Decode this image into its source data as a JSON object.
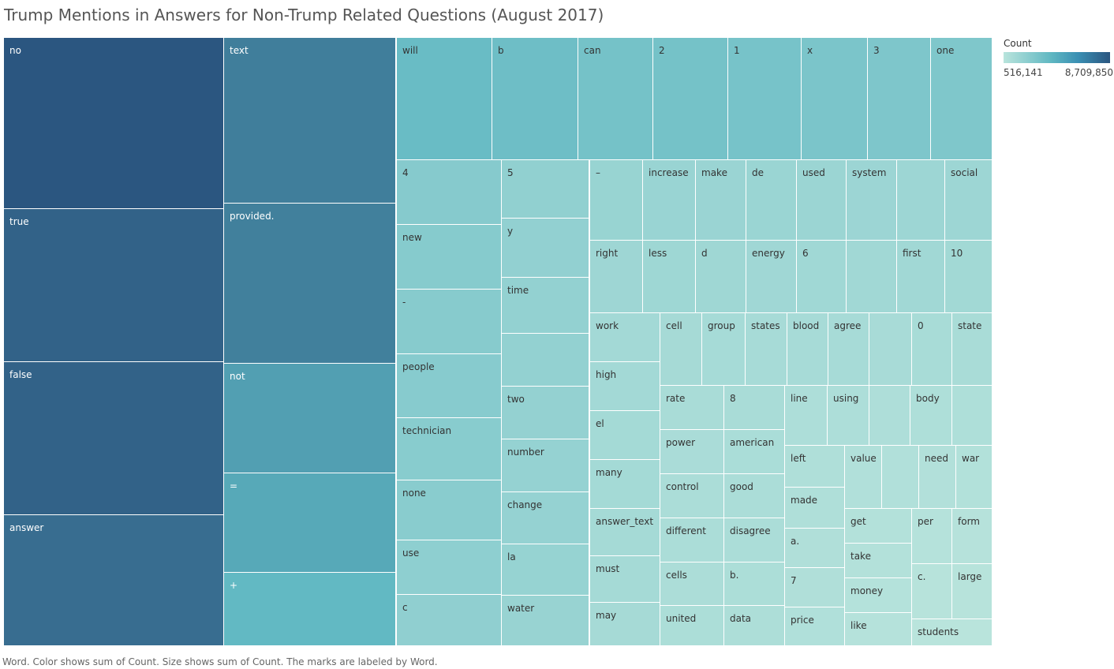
{
  "title": "Trump Mentions in Answers for Non-Trump Related Questions (August 2017)",
  "caption": "Word.  Color shows sum of Count.  Size shows sum of Count.  The marks are labeled by Word.",
  "legend": {
    "title": "Count",
    "min_label": "516,141",
    "max_label": "8,709,850"
  },
  "chart_data": {
    "type": "treemap",
    "title": "Trump Mentions in Answers for Non-Trump Related Questions (August 2017)",
    "size_measure": "Count",
    "color_measure": "Count",
    "color_range": [
      516141,
      8709850
    ],
    "colors": {
      "low": "#b9e4dc",
      "mid": "#5fb7c2",
      "high": "#2b5680"
    },
    "items": [
      {
        "word": "no",
        "value": 8709850
      },
      {
        "word": "true",
        "value": 7800000
      },
      {
        "word": "false",
        "value": 7800000
      },
      {
        "word": "answer",
        "value": 7000000
      },
      {
        "word": "text",
        "value": 5900000
      },
      {
        "word": "provided.",
        "value": 5800000
      },
      {
        "word": "not",
        "value": 4000000
      },
      {
        "word": "=",
        "value": 3500000
      },
      {
        "word": "+",
        "value": 2700000
      },
      {
        "word": "will",
        "value": 2400000
      },
      {
        "word": "b",
        "value": 2200000
      },
      {
        "word": "can",
        "value": 1900000
      },
      {
        "word": "2",
        "value": 1900000
      },
      {
        "word": "1",
        "value": 1850000
      },
      {
        "word": "x",
        "value": 1700000
      },
      {
        "word": "3",
        "value": 1600000
      },
      {
        "word": "one",
        "value": 1550000
      },
      {
        "word": "4",
        "value": 1350000
      },
      {
        "word": "new",
        "value": 1330000
      },
      {
        "word": "-",
        "value": 1320000
      },
      {
        "word": "people",
        "value": 1300000
      },
      {
        "word": "technician",
        "value": 1280000
      },
      {
        "word": "none",
        "value": 1250000
      },
      {
        "word": "use",
        "value": 1120000
      },
      {
        "word": "c",
        "value": 1080000
      },
      {
        "word": "5",
        "value": 1050000
      },
      {
        "word": "y",
        "value": 1030000
      },
      {
        "word": "time",
        "value": 1010000
      },
      {
        "word": "",
        "value": 1000000
      },
      {
        "word": "two",
        "value": 980000
      },
      {
        "word": "number",
        "value": 960000
      },
      {
        "word": "change",
        "value": 950000
      },
      {
        "word": "la",
        "value": 930000
      },
      {
        "word": "water",
        "value": 900000
      },
      {
        "word": "–",
        "value": 890000
      },
      {
        "word": "increase",
        "value": 880000
      },
      {
        "word": "make",
        "value": 860000
      },
      {
        "word": "de",
        "value": 850000
      },
      {
        "word": "used",
        "value": 830000
      },
      {
        "word": "system",
        "value": 820000
      },
      {
        "word": "",
        "value": 800000
      },
      {
        "word": "social",
        "value": 790000
      },
      {
        "word": "right",
        "value": 780000
      },
      {
        "word": "less",
        "value": 770000
      },
      {
        "word": "d",
        "value": 760000
      },
      {
        "word": "energy",
        "value": 750000
      },
      {
        "word": "6",
        "value": 740000
      },
      {
        "word": "",
        "value": 730000
      },
      {
        "word": "first",
        "value": 720000
      },
      {
        "word": "10",
        "value": 710000
      },
      {
        "word": "work",
        "value": 700000
      },
      {
        "word": "high",
        "value": 690000
      },
      {
        "word": "el",
        "value": 680000
      },
      {
        "word": "many",
        "value": 675000
      },
      {
        "word": "answer_text",
        "value": 670000
      },
      {
        "word": "must",
        "value": 665000
      },
      {
        "word": "may",
        "value": 660000
      },
      {
        "word": "cell",
        "value": 655000
      },
      {
        "word": "group",
        "value": 650000
      },
      {
        "word": "states",
        "value": 645000
      },
      {
        "word": "blood",
        "value": 640000
      },
      {
        "word": "agree",
        "value": 635000
      },
      {
        "word": "",
        "value": 630000
      },
      {
        "word": "0",
        "value": 625000
      },
      {
        "word": "state",
        "value": 620000
      },
      {
        "word": "rate",
        "value": 615000
      },
      {
        "word": "8",
        "value": 612000
      },
      {
        "word": "power",
        "value": 608000
      },
      {
        "word": "american",
        "value": 604000
      },
      {
        "word": "control",
        "value": 600000
      },
      {
        "word": "good",
        "value": 597000
      },
      {
        "word": "different",
        "value": 594000
      },
      {
        "word": "disagree",
        "value": 591000
      },
      {
        "word": "cells",
        "value": 588000
      },
      {
        "word": "b.",
        "value": 585000
      },
      {
        "word": "united",
        "value": 582000
      },
      {
        "word": "data",
        "value": 579000
      },
      {
        "word": "line",
        "value": 576000
      },
      {
        "word": "using",
        "value": 573000
      },
      {
        "word": "",
        "value": 570000
      },
      {
        "word": "body",
        "value": 567000
      },
      {
        "word": "",
        "value": 564000
      },
      {
        "word": "left",
        "value": 561000
      },
      {
        "word": "made",
        "value": 558000
      },
      {
        "word": "a.",
        "value": 555000
      },
      {
        "word": "7",
        "value": 552000
      },
      {
        "word": "price",
        "value": 549000
      },
      {
        "word": "value",
        "value": 546000
      },
      {
        "word": "",
        "value": 543000
      },
      {
        "word": "need",
        "value": 540000
      },
      {
        "word": "war",
        "value": 537000
      },
      {
        "word": "get",
        "value": 534000
      },
      {
        "word": "take",
        "value": 531000
      },
      {
        "word": "money",
        "value": 528000
      },
      {
        "word": "like",
        "value": 525000
      },
      {
        "word": "per",
        "value": 523000
      },
      {
        "word": "form",
        "value": 521000
      },
      {
        "word": "c.",
        "value": 519000
      },
      {
        "word": "large",
        "value": 518000
      },
      {
        "word": "students",
        "value": 516141
      }
    ]
  }
}
